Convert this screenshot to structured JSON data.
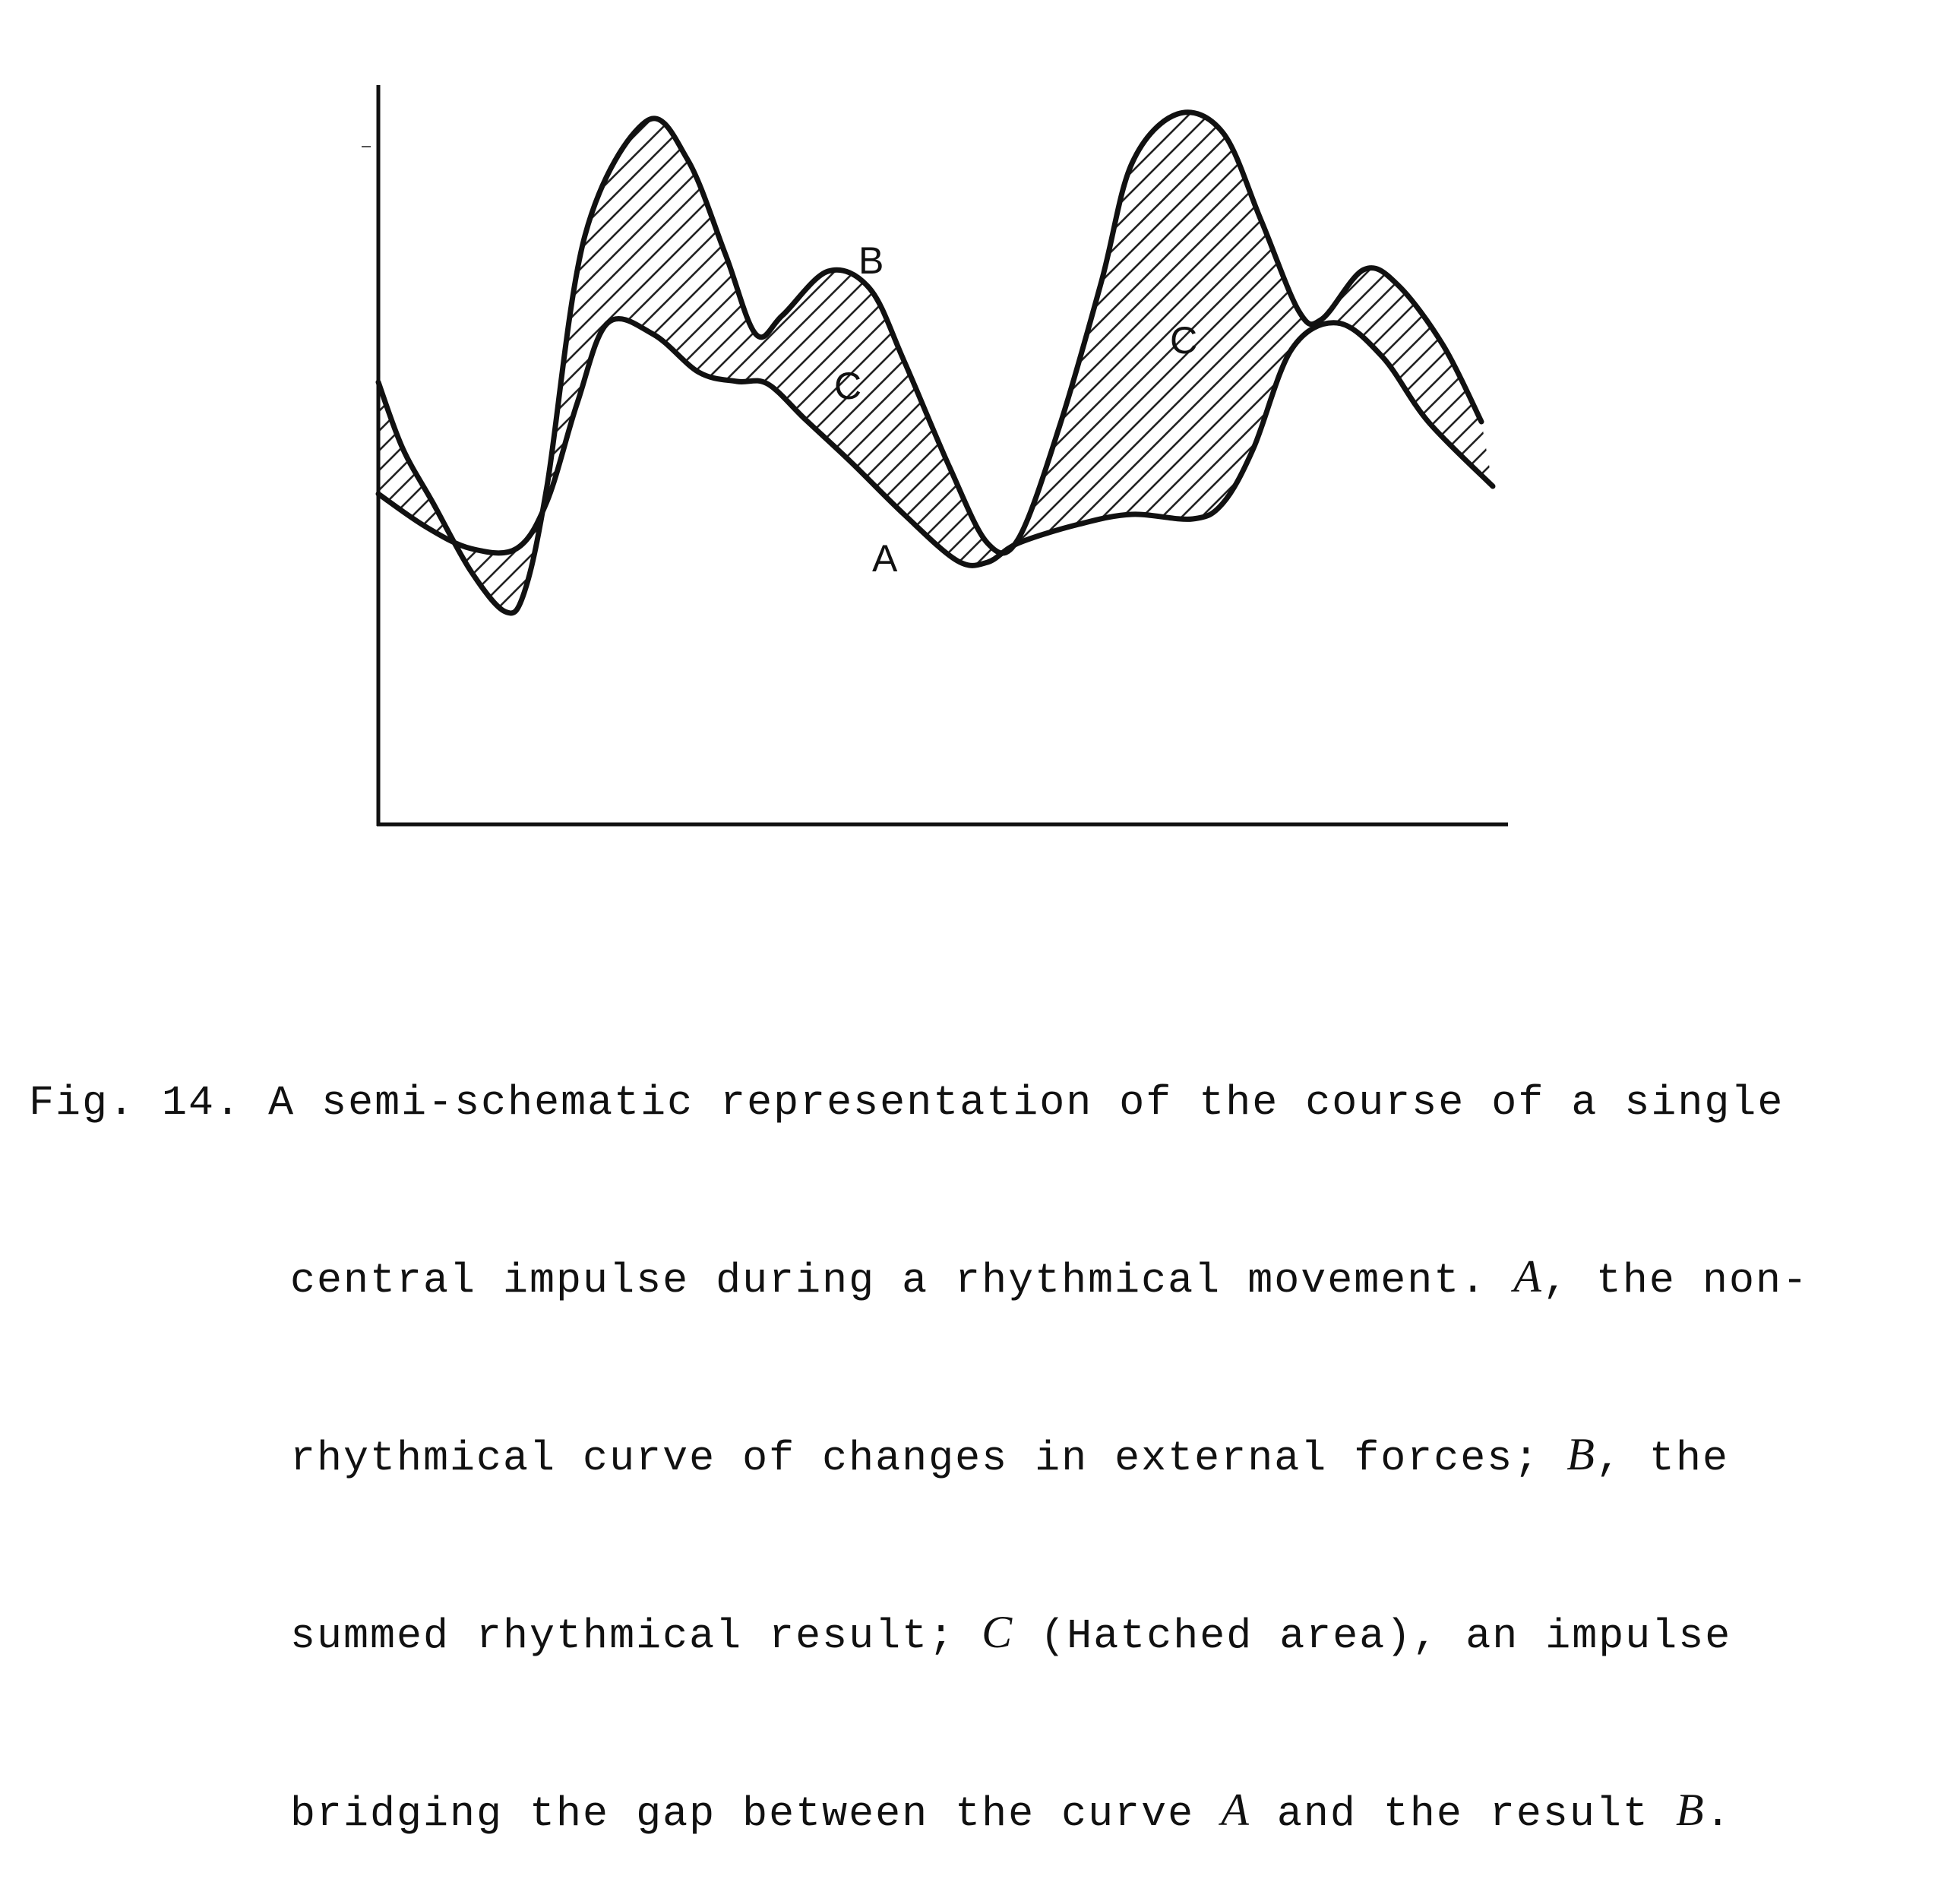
{
  "diagram": {
    "labels": {
      "curve_a": "A",
      "curve_b": "B",
      "area_c_1": "C",
      "area_c_2": "C"
    }
  },
  "caption": {
    "prefix": "Fig. 14. ",
    "line1": "A semi-schematic representation of the course of a single",
    "line2a": "central impulse during a rhythmical movement. ",
    "a": "A",
    "line2b": ", the non-",
    "line3a": "rhythmical curve of changes in external forces; ",
    "b": "B",
    "line3b": ", the",
    "line4a": "summed rhythmical result; ",
    "c": "C",
    "line4b": " (Hatched area), an impulse",
    "line5a": "bridging the gap between the curve ",
    "a2": "A",
    "line5b": " and the result ",
    "b2": "B",
    "line5c": "."
  }
}
